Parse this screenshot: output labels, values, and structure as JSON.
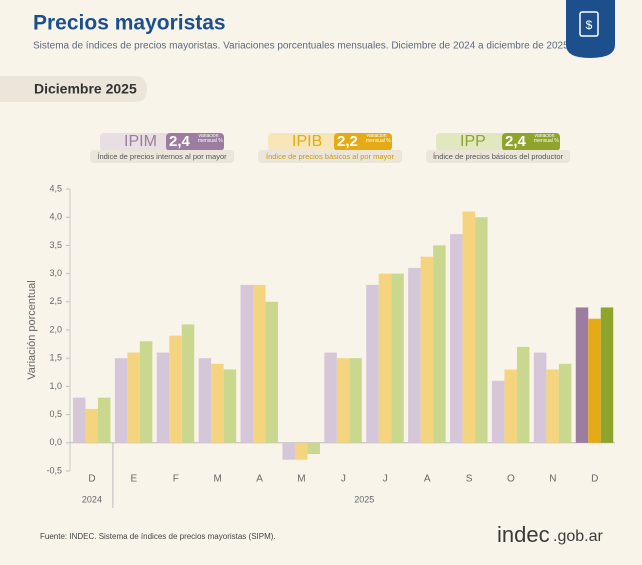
{
  "header": {
    "title": "Precios mayoristas",
    "subtitle": "Sistema de índices de precios mayoristas. Variaciones porcentuales mensuales. Diciembre de 2024 a diciembre de 2025",
    "tab": "Diciembre 2025"
  },
  "chart_data": {
    "type": "bar",
    "y_label": "Variación porcentual",
    "categories": [
      "D",
      "E",
      "F",
      "M",
      "A",
      "M",
      "J",
      "J",
      "A",
      "S",
      "O",
      "N",
      "D"
    ],
    "x_groups": [
      {
        "label": "2024",
        "count": 1
      },
      {
        "label": "2025",
        "count": 12
      }
    ],
    "ylim": [
      -0.5,
      4.5
    ],
    "yticks": [
      {
        "value": -0.5,
        "label": "-0,5"
      },
      {
        "value": 0,
        "label": "0,0"
      },
      {
        "value": 0.5,
        "label": "0,5"
      },
      {
        "value": 1,
        "label": "1,0"
      },
      {
        "value": 1.5,
        "label": "1,5"
      },
      {
        "value": 2,
        "label": "2,0"
      },
      {
        "value": 2.5,
        "label": "2,5"
      },
      {
        "value": 3,
        "label": "3,0"
      },
      {
        "value": 3.5,
        "label": "3,5"
      },
      {
        "value": 4,
        "label": "4,0"
      },
      {
        "value": 4.5,
        "label": "4,5"
      }
    ],
    "series": [
      {
        "name": "IPIM",
        "color": "#d5c6d9",
        "highlight_color": "#9c7c9f",
        "card_value": "2,4",
        "card_note": "Variación mensual %",
        "description": "Índice de precios internos al por mayor",
        "values": [
          0.8,
          1.5,
          1.6,
          1.5,
          2.8,
          -0.3,
          1.6,
          2.8,
          3.1,
          3.7,
          1.1,
          1.6,
          2.4
        ]
      },
      {
        "name": "IPIB",
        "color": "#f4d47e",
        "highlight_color": "#e5ab16",
        "card_value": "2,2",
        "card_note": "Variación mensual %",
        "description": "Índice de precios básicos al por mayor",
        "values": [
          0.6,
          1.6,
          1.9,
          1.4,
          2.8,
          -0.3,
          1.5,
          3.0,
          3.3,
          4.1,
          1.3,
          1.3,
          2.2
        ]
      },
      {
        "name": "IPP",
        "color": "#cad78f",
        "highlight_color": "#8ea42c",
        "card_value": "2,4",
        "card_note": "Variación mensual %",
        "description": "Índice de precios básicos del productor",
        "values": [
          0.8,
          1.8,
          2.1,
          1.3,
          2.5,
          -0.2,
          1.5,
          3.0,
          3.5,
          4.0,
          1.7,
          1.4,
          2.4
        ]
      }
    ]
  },
  "footer": {
    "source": "Fuente: INDEC. Sistema de índices de precios mayoristas (SIPM).",
    "logo_main": "indec",
    "logo_suffix": ".gob.ar"
  }
}
